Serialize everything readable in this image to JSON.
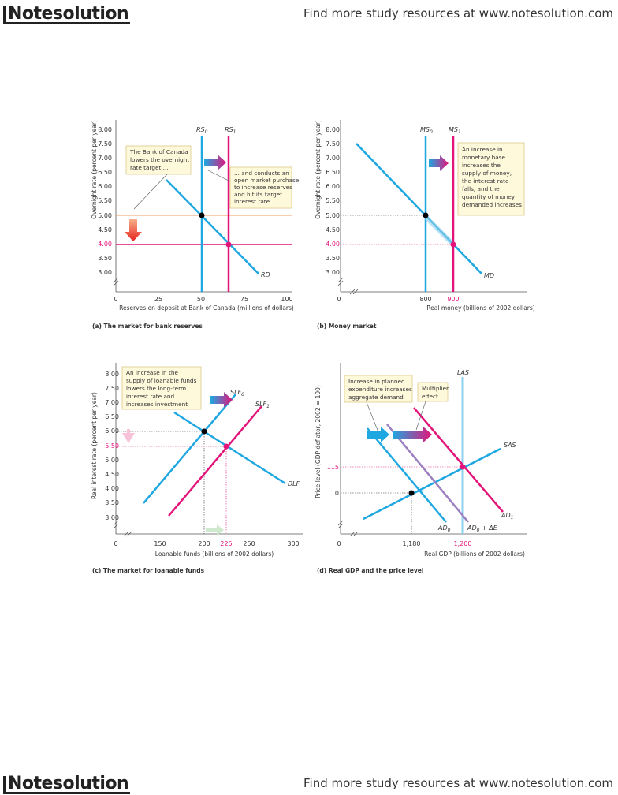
{
  "header": {
    "logo": "Notesolution",
    "tagline": "Find more study resources at www.notesolution.com"
  },
  "footer": {
    "logo": "Notesolution",
    "tagline": "Find more study resources at www.notesolution.com"
  },
  "colors": {
    "blue": "#1ea7e1",
    "magenta": "#e3147a",
    "orange": "#f09a5a",
    "purple": "#9b7fc0",
    "red": "#e8231d",
    "lightblue": "#8fd0ee",
    "note_bg": "#fff9dc",
    "note_border": "#d7c07a"
  },
  "panels": {
    "a": {
      "caption": "(a) The market for bank reserves",
      "ylabel": "Overnight rate (percent per year)",
      "xlabel": "Reserves on deposit at Bank of Canada (millions of dollars)",
      "yticks": [
        "8.00",
        "7.50",
        "7.00",
        "6.50",
        "6.00",
        "5.50",
        "5.00",
        "4.50",
        "4.00",
        "3.50",
        "3.00"
      ],
      "xticks": [
        "0",
        "25",
        "50",
        "75",
        "100"
      ],
      "curves": {
        "rs0": "RS",
        "rs0_sub": "0",
        "rs1": "RS",
        "rs1_sub": "1",
        "rd": "RD"
      },
      "note1": [
        "The Bank of Canada",
        "lowers the overnight",
        "rate target ..."
      ],
      "note2": [
        "... and conducts an",
        "open market purchase",
        "to increase reserves",
        "and hit its target",
        "interest rate"
      ]
    },
    "b": {
      "caption": "(b) Money market",
      "ylabel": "Overnight rate (percent per year)",
      "xlabel": "Real money (billions of 2002 dollars)",
      "yticks": [
        "8.00",
        "7.50",
        "7.00",
        "6.50",
        "6.00",
        "5.50",
        "5.00",
        "4.50",
        "4.00",
        "3.50",
        "3.00"
      ],
      "xticks": [
        "0",
        "800",
        "900"
      ],
      "curves": {
        "ms0": "MS",
        "ms0_sub": "0",
        "ms1": "MS",
        "ms1_sub": "1",
        "md": "MD"
      },
      "note": [
        "An increase in",
        "monetary base",
        "increases the",
        "supply of money,",
        "the interest rate",
        "falls, and the",
        "quantity of money",
        "demanded increases"
      ]
    },
    "c": {
      "caption": "(c) The market for loanable funds",
      "ylabel": "Real interest rate (percent per year)",
      "xlabel": "Loanable funds (billions of 2002 dollars)",
      "yticks": [
        "8.00",
        "7.50",
        "7.00",
        "6.50",
        "6.00",
        "5.50",
        "5.00",
        "4.50",
        "4.00",
        "3.50",
        "3.00"
      ],
      "xticks": [
        "0",
        "150",
        "200",
        "225",
        "250",
        "300"
      ],
      "curves": {
        "slf0": "SLF",
        "slf0_sub": "0",
        "slf1": "SLF",
        "slf1_sub": "1",
        "dlf": "DLF"
      },
      "note": [
        "An increase in the",
        "supply of loanable funds",
        "lowers the long-term",
        "interest rate and",
        "increases investment"
      ]
    },
    "d": {
      "caption": "(d) Real GDP and the price level",
      "ylabel": "Price level (GDP deflator, 2002 = 100)",
      "xlabel": "Real GDP (billions of 2002 dollars)",
      "yticks": [
        "115",
        "110"
      ],
      "xticks": [
        "0",
        "1,180",
        "1,200"
      ],
      "curves": {
        "las": "LAS",
        "sas": "SAS",
        "ad0": "AD",
        "ad0_sub": "0",
        "ad1": "AD",
        "ad1_sub": "1",
        "ade": "AD",
        "ade_sub": "0",
        "ade_suffix": " + ΔE"
      },
      "note1": [
        "Increase in planned",
        "expenditure increases",
        "aggregate demand"
      ],
      "note2": [
        "Multiplier",
        "effect"
      ]
    }
  }
}
